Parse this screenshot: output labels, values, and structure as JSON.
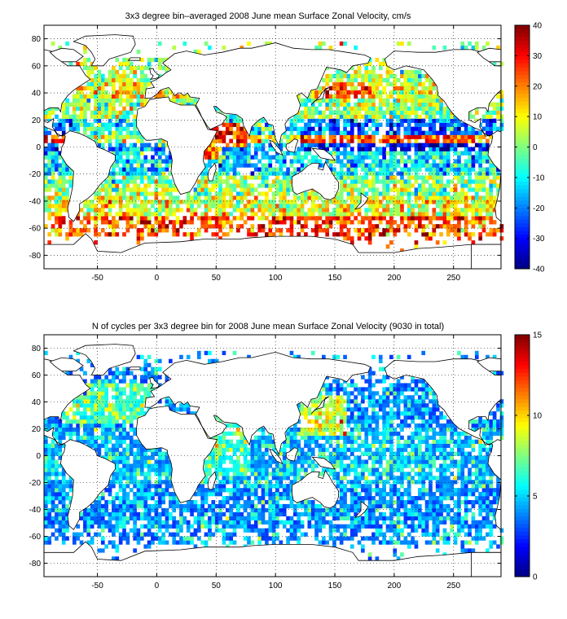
{
  "chart_data": [
    {
      "type": "heatmap",
      "title": "3x3 degree bin–averaged 2008 June mean Surface Zonal Velocity, cm/s",
      "xlim": [
        -95,
        290
      ],
      "ylim": [
        -90,
        90
      ],
      "xticks": [
        -50,
        0,
        50,
        100,
        150,
        200,
        250
      ],
      "yticks": [
        -80,
        -60,
        -40,
        -20,
        0,
        20,
        40,
        60,
        80
      ],
      "bin_size_deg": 3,
      "colorbar": {
        "range": [
          -40,
          40
        ],
        "ticks": [
          -40,
          -30,
          -20,
          -10,
          0,
          10,
          20,
          30,
          40
        ],
        "colormap": "jet"
      },
      "grid": true,
      "description_values": {
        "equatorial_band": -30,
        "subtropics": 5,
        "southern_ocean": 25
      }
    },
    {
      "type": "heatmap",
      "title": "N of cycles per 3x3 degree bin for 2008 June mean Surface Zonal Velocity (9030 in total)",
      "xlim": [
        -95,
        290
      ],
      "ylim": [
        -90,
        90
      ],
      "xticks": [
        -50,
        0,
        50,
        100,
        150,
        200,
        250
      ],
      "yticks": [
        -80,
        -60,
        -40,
        -20,
        0,
        20,
        40,
        60,
        80
      ],
      "bin_size_deg": 3,
      "colorbar": {
        "range": [
          0,
          15
        ],
        "ticks": [
          0,
          5,
          10,
          15
        ],
        "colormap": "jet"
      },
      "grid": true,
      "total_cycles": 9030
    }
  ]
}
